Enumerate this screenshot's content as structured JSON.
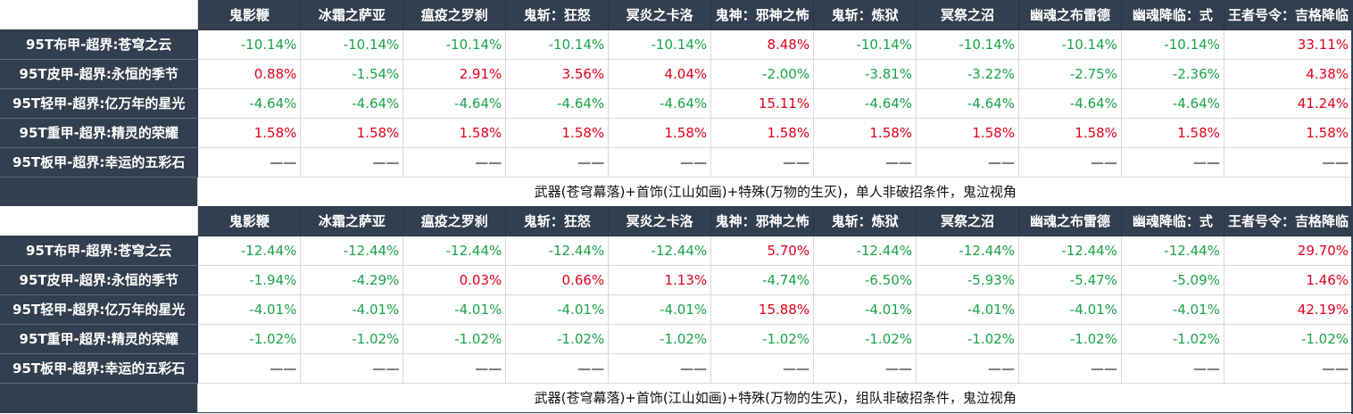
{
  "columns": [
    "鬼影鞭",
    "冰霜之萨亚",
    "瘟疫之罗刹",
    "鬼斩：狂怒",
    "冥炎之卡洛",
    "鬼神：邪神之怖",
    "鬼斩：炼狱",
    "冥祭之沼",
    "幽魂之布雷德",
    "幽魂降临：式",
    "王者号令：吉格降临"
  ],
  "row_labels": [
    "95T布甲-超界:苍穹之云",
    "95T皮甲-超界:永恒的季节",
    "95T轻甲-超界:亿万年的星光",
    "95T重甲-超界:精灵的荣耀",
    "95T板甲-超界:幸运的五彩石"
  ],
  "tables": [
    {
      "rows": [
        [
          "-10.14%",
          "-10.14%",
          "-10.14%",
          "-10.14%",
          "-10.14%",
          "8.48%",
          "-10.14%",
          "-10.14%",
          "-10.14%",
          "-10.14%",
          "33.11%"
        ],
        [
          "0.88%",
          "-1.54%",
          "2.91%",
          "3.56%",
          "4.04%",
          "-2.00%",
          "-3.81%",
          "-3.22%",
          "-2.75%",
          "-2.36%",
          "4.38%"
        ],
        [
          "-4.64%",
          "-4.64%",
          "-4.64%",
          "-4.64%",
          "-4.64%",
          "15.11%",
          "-4.64%",
          "-4.64%",
          "-4.64%",
          "-4.64%",
          "41.24%"
        ],
        [
          "1.58%",
          "1.58%",
          "1.58%",
          "1.58%",
          "1.58%",
          "1.58%",
          "1.58%",
          "1.58%",
          "1.58%",
          "1.58%",
          "1.58%"
        ],
        [
          "——",
          "——",
          "——",
          "——",
          "——",
          "——",
          "——",
          "——",
          "——",
          "——",
          "——"
        ]
      ],
      "note": "武器(苍穹幕落)+首饰(江山如画)+特殊(万物的生灭)，单人非破招条件，鬼泣视角"
    },
    {
      "rows": [
        [
          "-12.44%",
          "-12.44%",
          "-12.44%",
          "-12.44%",
          "-12.44%",
          "5.70%",
          "-12.44%",
          "-12.44%",
          "-12.44%",
          "-12.44%",
          "29.70%"
        ],
        [
          "-1.94%",
          "-4.29%",
          "0.03%",
          "0.66%",
          "1.13%",
          "-4.74%",
          "-6.50%",
          "-5.93%",
          "-5.47%",
          "-5.09%",
          "1.46%"
        ],
        [
          "-4.01%",
          "-4.01%",
          "-4.01%",
          "-4.01%",
          "-4.01%",
          "15.88%",
          "-4.01%",
          "-4.01%",
          "-4.01%",
          "-4.01%",
          "42.19%"
        ],
        [
          "-1.02%",
          "-1.02%",
          "-1.02%",
          "-1.02%",
          "-1.02%",
          "-1.02%",
          "-1.02%",
          "-1.02%",
          "-1.02%",
          "-1.02%",
          "-1.02%"
        ],
        [
          "——",
          "——",
          "——",
          "——",
          "——",
          "——",
          "——",
          "——",
          "——",
          "——",
          "——"
        ]
      ],
      "note": "武器(苍穹幕落)+首饰(江山如画)+特殊(万物的生灭)，组队非破招条件，鬼泣视角"
    }
  ],
  "colors": {
    "header_bg": "#323f4f",
    "positive": "#e0001b",
    "negative": "#1aa34a"
  }
}
